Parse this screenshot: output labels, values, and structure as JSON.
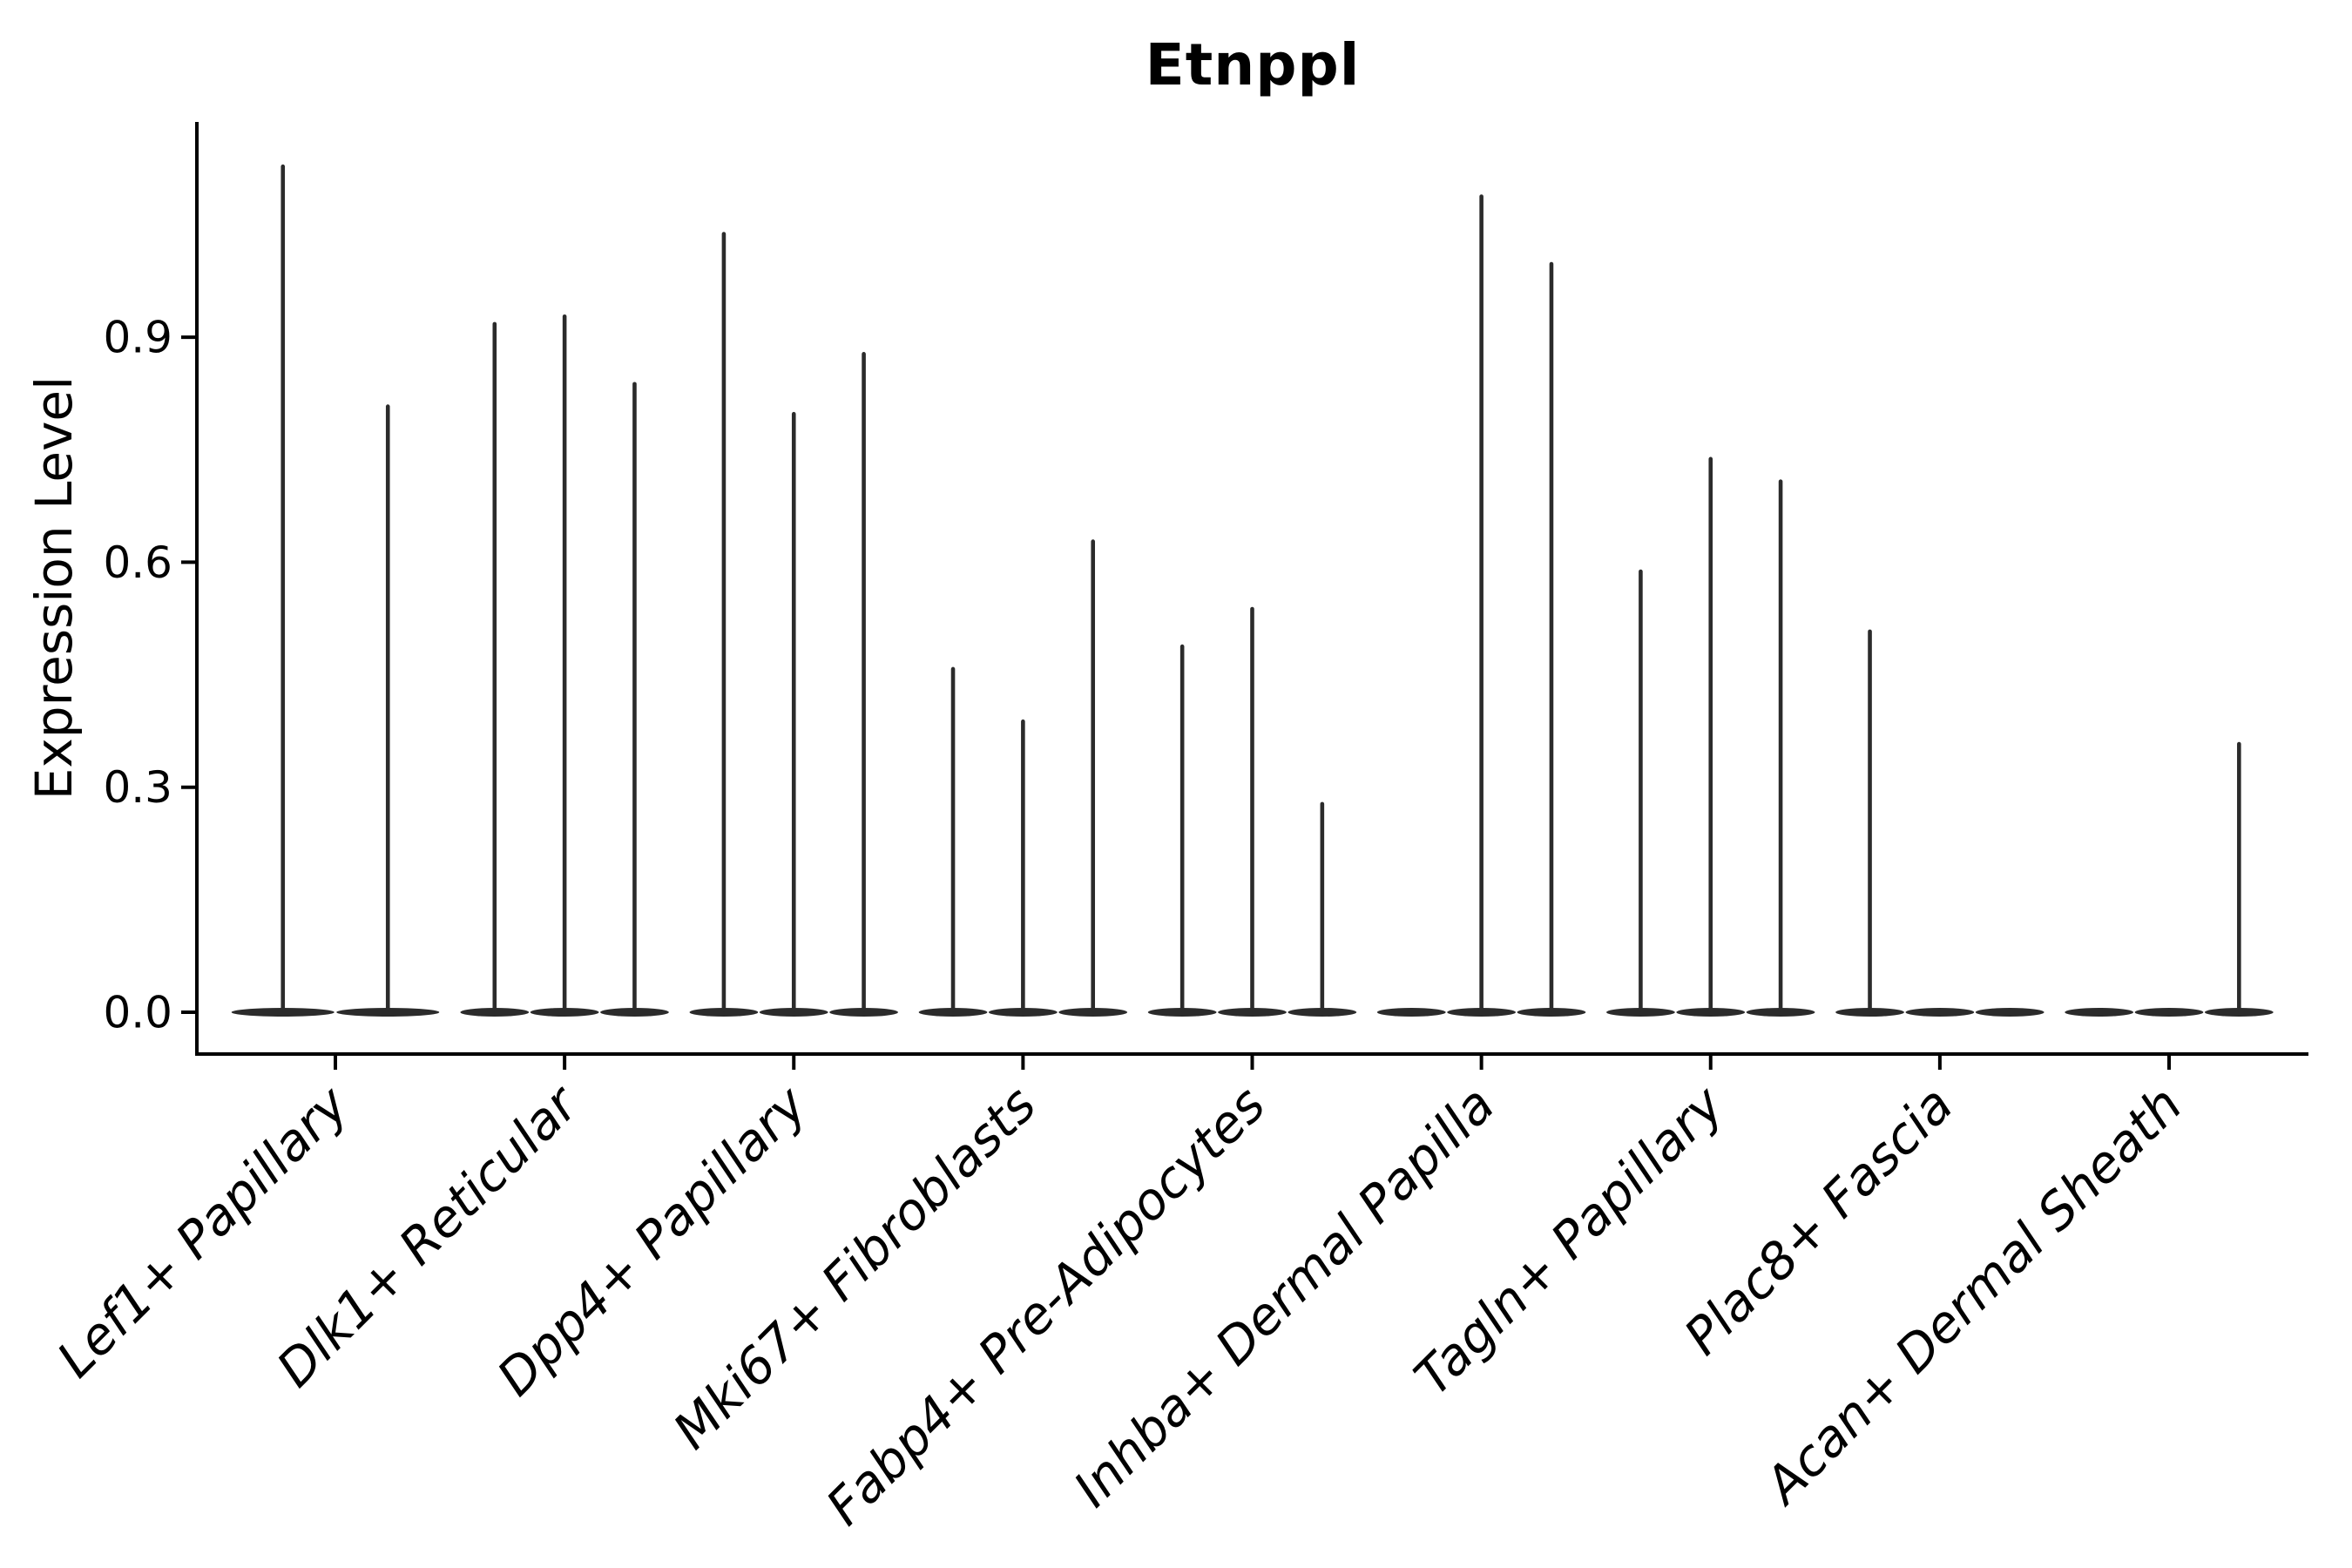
{
  "chart_data": {
    "type": "violin",
    "title": "Etnppl",
    "ylabel": "Expression Level",
    "xlabel": "",
    "legend": "none",
    "grid": false,
    "background_color": "#ffffff",
    "axis_color": "#000000",
    "violin_color": "#2b2b2b",
    "ylim": [
      -0.06,
      1.19
    ],
    "y_ticks": [
      {
        "value": 0.0,
        "label": "0.0"
      },
      {
        "value": 0.3,
        "label": "0.3"
      },
      {
        "value": 0.6,
        "label": "0.6"
      },
      {
        "value": 0.9,
        "label": "0.9"
      }
    ],
    "categories": [
      "Lef1+ Papillary",
      "Dlk1+ Reticular",
      "Dpp4+ Papillary",
      "Mki67+ Fibroblasts",
      "Fabp4+ Pre-Adipocytes",
      "Inhba+ Dermal Papilla",
      "Tagln+ Papillary",
      "Plac8+ Fascia",
      "Acan+ Dermal Sheath"
    ],
    "groups": [
      {
        "category": "Lef1+ Papillary",
        "violin_max_values": [
          1.13,
          0.81
        ]
      },
      {
        "category": "Dlk1+ Reticular",
        "violin_max_values": [
          0.92,
          0.93,
          0.84
        ]
      },
      {
        "category": "Dpp4+ Papillary",
        "violin_max_values": [
          1.04,
          0.8,
          0.88
        ]
      },
      {
        "category": "Mki67+ Fibroblasts",
        "violin_max_values": [
          0.46,
          0.39,
          0.63
        ]
      },
      {
        "category": "Fabp4+ Pre-Adipocytes",
        "violin_max_values": [
          0.49,
          0.54,
          0.28
        ]
      },
      {
        "category": "Inhba+ Dermal Papilla",
        "violin_max_values": [
          0.0,
          1.09,
          1.0
        ]
      },
      {
        "category": "Tagln+ Papillary",
        "violin_max_values": [
          0.59,
          0.74,
          0.71
        ]
      },
      {
        "category": "Plac8+ Fascia",
        "violin_max_values": [
          0.51,
          0.0,
          0.0
        ]
      },
      {
        "category": "Acan+ Dermal Sheath",
        "violin_max_values": [
          0.0,
          0.0,
          0.36
        ]
      }
    ]
  }
}
